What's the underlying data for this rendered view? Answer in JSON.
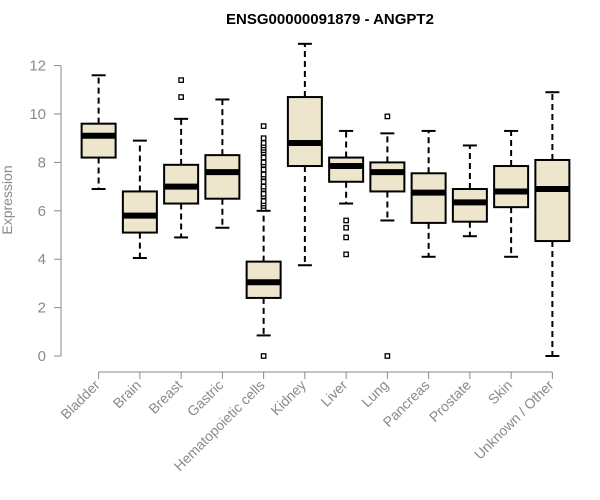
{
  "chart_data": {
    "type": "boxplot",
    "title": "ENSG00000091879 - ANGPT2",
    "xlabel": "",
    "ylabel": "Expression",
    "ylim": [
      0,
      12.5
    ],
    "yticks": [
      0,
      2,
      4,
      6,
      8,
      10,
      12
    ],
    "grid": false,
    "legend": "none",
    "colors": {
      "box_fill": "#ede6cc",
      "stroke": "#000000",
      "axis": "#8a8a8a"
    },
    "categories": [
      "Bladder",
      "Brain",
      "Breast",
      "Gastric",
      "Hematopoietic cells",
      "Kidney",
      "Liver",
      "Lung",
      "Pancreas",
      "Prostate",
      "Skin",
      "Unknown / Other"
    ],
    "boxes": [
      {
        "category": "Bladder",
        "whisker_low": 6.9,
        "q1": 8.2,
        "median": 9.1,
        "q3": 9.6,
        "whisker_high": 11.6,
        "outliers": []
      },
      {
        "category": "Brain",
        "whisker_low": 4.05,
        "q1": 5.1,
        "median": 5.8,
        "q3": 6.8,
        "whisker_high": 8.9,
        "outliers": []
      },
      {
        "category": "Breast",
        "whisker_low": 4.9,
        "q1": 6.3,
        "median": 7.0,
        "q3": 7.9,
        "whisker_high": 9.8,
        "outliers": [
          10.7,
          11.4
        ]
      },
      {
        "category": "Gastric",
        "whisker_low": 5.3,
        "q1": 6.5,
        "median": 7.6,
        "q3": 8.3,
        "whisker_high": 10.6,
        "outliers": []
      },
      {
        "category": "Hematopoietic cells",
        "whisker_low": 0.85,
        "q1": 2.4,
        "median": 3.05,
        "q3": 3.9,
        "whisker_high": 6.0,
        "outliers": [
          0.0,
          6.1,
          6.2,
          6.3,
          6.4,
          6.6,
          6.7,
          6.9,
          7.0,
          7.2,
          7.4,
          7.5,
          7.7,
          7.9,
          8.0,
          8.2,
          8.4,
          8.5,
          8.6,
          8.7,
          8.8,
          9.0,
          9.5
        ]
      },
      {
        "category": "Kidney",
        "whisker_low": 3.75,
        "q1": 7.85,
        "median": 8.8,
        "q3": 10.7,
        "whisker_high": 12.9,
        "outliers": []
      },
      {
        "category": "Liver",
        "whisker_low": 6.3,
        "q1": 7.2,
        "median": 7.85,
        "q3": 8.2,
        "whisker_high": 9.3,
        "outliers": [
          4.2,
          4.9,
          5.3,
          5.6
        ]
      },
      {
        "category": "Lung",
        "whisker_low": 5.6,
        "q1": 6.8,
        "median": 7.6,
        "q3": 8.0,
        "whisker_high": 9.2,
        "outliers": [
          0.0,
          9.9
        ]
      },
      {
        "category": "Pancreas",
        "whisker_low": 4.1,
        "q1": 5.5,
        "median": 6.75,
        "q3": 7.55,
        "whisker_high": 9.3,
        "outliers": []
      },
      {
        "category": "Prostate",
        "whisker_low": 4.95,
        "q1": 5.55,
        "median": 6.35,
        "q3": 6.9,
        "whisker_high": 8.7,
        "outliers": []
      },
      {
        "category": "Skin",
        "whisker_low": 4.1,
        "q1": 6.15,
        "median": 6.8,
        "q3": 7.85,
        "whisker_high": 9.3,
        "outliers": []
      },
      {
        "category": "Unknown / Other",
        "whisker_low": 0.0,
        "q1": 4.75,
        "median": 6.9,
        "q3": 8.1,
        "whisker_high": 10.9,
        "outliers": []
      }
    ]
  }
}
